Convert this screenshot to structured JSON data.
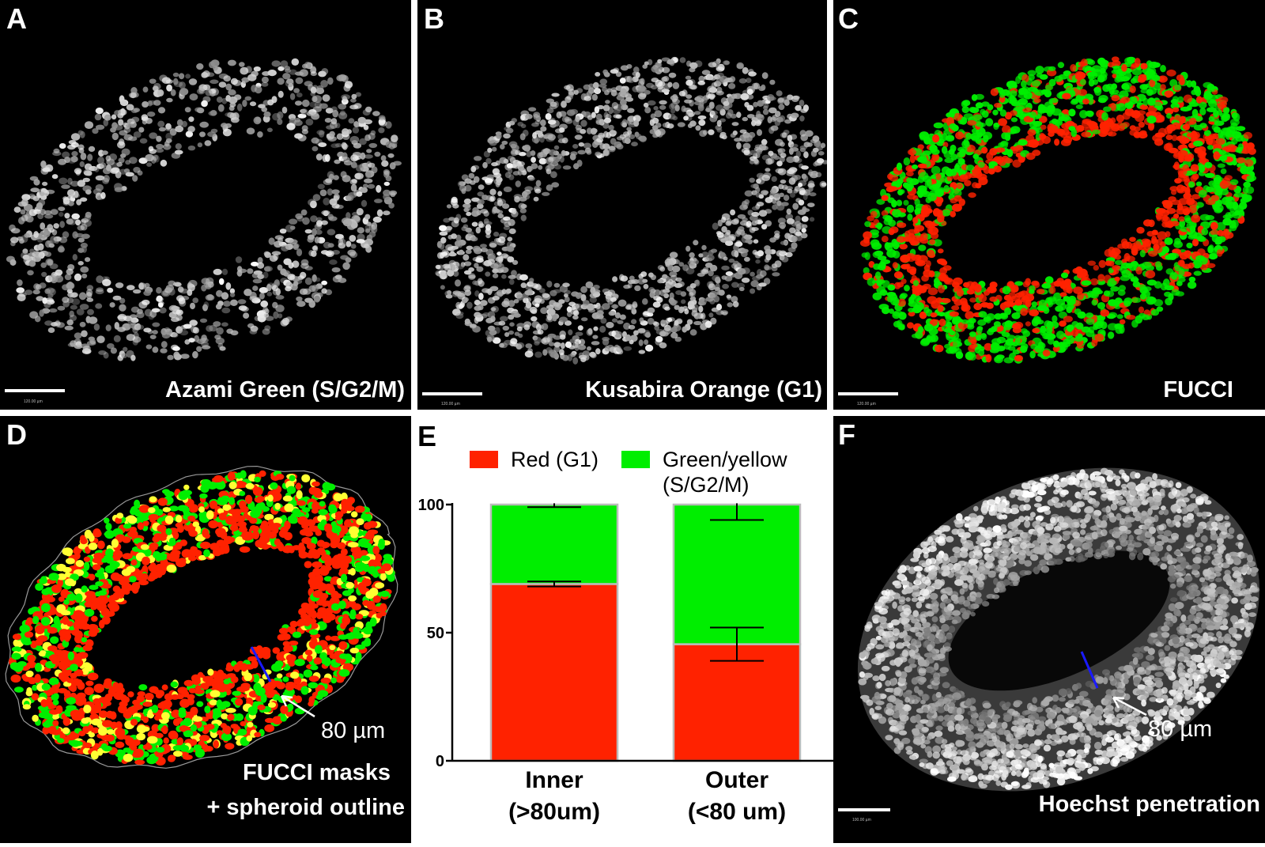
{
  "panels": {
    "A": {
      "letter": "A",
      "caption": "Azami Green (S/G2/M)",
      "scale_text": "120.00 µm"
    },
    "B": {
      "letter": "B",
      "caption": "Kusabira Orange (G1)",
      "scale_text": "120.00 µm"
    },
    "C": {
      "letter": "C",
      "caption": "FUCCI",
      "scale_text": "120.00 µm"
    },
    "D": {
      "letter": "D",
      "caption_line1": "FUCCI masks",
      "caption_line2": "+ spheroid outline",
      "annotation": "80 µm"
    },
    "E": {
      "letter": "E"
    },
    "F": {
      "letter": "F",
      "caption": "Hoechst penetration",
      "annotation": "80 µm",
      "scale_text": "100.00 µm"
    }
  },
  "colors": {
    "red": "#ff2200",
    "green": "#00ee00",
    "yellow": "#ffff33",
    "marker": "#1a1aff",
    "bar_edge": "#bbbbbb"
  },
  "chart_data": {
    "type": "bar",
    "stacked": true,
    "categories": [
      "Inner\n(>80um)",
      "Outer\n(<80 um)"
    ],
    "series": [
      {
        "name": "Red (G1)",
        "color": "#ff2200",
        "values": [
          69,
          45.5
        ]
      },
      {
        "name": "Green/yellow\n(S/G2/M)",
        "color": "#00ee00",
        "values": [
          31,
          54.5
        ]
      }
    ],
    "error_bars": {
      "red_top": [
        [
          68,
          70
        ],
        [
          39,
          52
        ]
      ],
      "total": [
        [
          99,
          100.5
        ],
        [
          94,
          100.5
        ]
      ]
    },
    "yticks": [
      0,
      50,
      100
    ],
    "ylim": [
      0,
      100
    ],
    "legend_position": "top",
    "grid": false
  }
}
